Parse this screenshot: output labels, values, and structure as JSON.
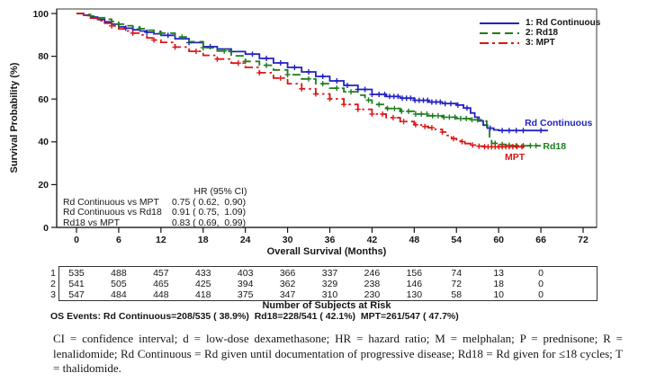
{
  "colors": {
    "rd_continuous": "#2222c4",
    "rd18": "#1e7d1e",
    "mpt": "#dd1515",
    "frame": "#595959",
    "axis": "#161616",
    "text": "#161616"
  },
  "legend": {
    "items": [
      {
        "label": "1: Rd Continuous",
        "series": "rd_continuous",
        "dash": "solid"
      },
      {
        "label": "2: Rd18",
        "series": "rd18",
        "dash": "dashed"
      },
      {
        "label": "3: MPT",
        "series": "mpt",
        "dash": "dashdot"
      }
    ]
  },
  "hr_table": {
    "header": "HR (95% CI)",
    "rows": [
      {
        "label": "Rd Continuous vs MPT",
        "value": "0.75 ( 0.62,  0.90)"
      },
      {
        "label": "Rd Continuous vs Rd18",
        "value": "0.91 ( 0.75,  1.09)"
      },
      {
        "label": "Rd18 vs MPT",
        "value": "0.83 ( 0.69,  0.99)"
      }
    ]
  },
  "risk_table": {
    "title": "Number of Subjects at Risk",
    "months": [
      0,
      6,
      12,
      18,
      24,
      30,
      36,
      42,
      48,
      54,
      60,
      66
    ],
    "rows": [
      {
        "label": "1",
        "values": [
          535,
          488,
          457,
          433,
          403,
          366,
          337,
          246,
          156,
          74,
          13,
          0
        ]
      },
      {
        "label": "2",
        "values": [
          541,
          505,
          465,
          425,
          394,
          362,
          329,
          238,
          146,
          72,
          18,
          0
        ]
      },
      {
        "label": "3",
        "values": [
          547,
          484,
          448,
          418,
          375,
          347,
          310,
          230,
          130,
          58,
          10,
          0
        ]
      }
    ]
  },
  "os_events": "OS Events: Rd Continuous=208/535 ( 38.9%)  Rd18=228/541 ( 42.1%)  MPT=261/547 ( 47.7%)",
  "footnote": "CI = confidence interval; d = low-dose dexamethasone; HR = hazard ratio; M = melphalan; P = prednisone; R = lenalidomide; Rd Continuous = Rd given until documentation of progressive disease; Rd18 = Rd given for ≤18 cycles; T = thalidomide.",
  "chart_data": {
    "type": "line",
    "subtype": "kaplan-meier-step",
    "title": "",
    "xlabel": "Overall Survival (Months)",
    "ylabel": "Survival Probability (%)",
    "xlim": [
      0,
      72
    ],
    "ylim": [
      0,
      100
    ],
    "x_ticks": [
      0,
      6,
      12,
      18,
      24,
      30,
      36,
      42,
      48,
      54,
      60,
      66,
      72
    ],
    "y_ticks": [
      0,
      20,
      40,
      60,
      80,
      100
    ],
    "grid": false,
    "legend_position": "top-right-inside",
    "series": [
      {
        "name": "Rd Continuous",
        "key": "rd_continuous",
        "dash": "solid",
        "points": [
          [
            0,
            100
          ],
          [
            1,
            99.2
          ],
          [
            2,
            98.3
          ],
          [
            3,
            97.2
          ],
          [
            4,
            96.1
          ],
          [
            5,
            95
          ],
          [
            6,
            93.8
          ],
          [
            7,
            93.1
          ],
          [
            8,
            92.4
          ],
          [
            9,
            91.8
          ],
          [
            10,
            91.2
          ],
          [
            11,
            90.5
          ],
          [
            12,
            89.8
          ],
          [
            14,
            88.2
          ],
          [
            16,
            86.4
          ],
          [
            18,
            84.5
          ],
          [
            20,
            83.4
          ],
          [
            22,
            82.2
          ],
          [
            24,
            81
          ],
          [
            26,
            79
          ],
          [
            28,
            76.9
          ],
          [
            30,
            74.8
          ],
          [
            32,
            72.7
          ],
          [
            34,
            70.6
          ],
          [
            36,
            68.5
          ],
          [
            38,
            66.4
          ],
          [
            40,
            64.5
          ],
          [
            42,
            62.2
          ],
          [
            44,
            61.2
          ],
          [
            46,
            60.4
          ],
          [
            48,
            59.4
          ],
          [
            50,
            58.6
          ],
          [
            52,
            57.9
          ],
          [
            54,
            57.2
          ],
          [
            55,
            55.8
          ],
          [
            56,
            53.5
          ],
          [
            56.6,
            51.5
          ],
          [
            57.2,
            49.8
          ],
          [
            57.8,
            47.8
          ],
          [
            58.4,
            46.4
          ],
          [
            59.3,
            45.6
          ],
          [
            60,
            45.3
          ],
          [
            67,
            45.3
          ]
        ],
        "censor_months": [
          7,
          10,
          13,
          16,
          19,
          22,
          25,
          27,
          29,
          31,
          33,
          35,
          37,
          38.5,
          40,
          41,
          42,
          43,
          43.8,
          44.5,
          45.1,
          45.7,
          46.3,
          46.9,
          47.5,
          48.1,
          48.7,
          49.3,
          49.9,
          50.5,
          51.1,
          51.7,
          52.4,
          53.2,
          54.2,
          55.5,
          58.8,
          60.5,
          61.5,
          62.5,
          63.5,
          66
        ],
        "end_label": {
          "text": "Rd Continuous",
          "month": 63.7,
          "pct": 48.8,
          "anchor": "start"
        }
      },
      {
        "name": "Rd18",
        "key": "rd18",
        "dash": "dashed",
        "points": [
          [
            0,
            100
          ],
          [
            1,
            99.5
          ],
          [
            2,
            98.8
          ],
          [
            3,
            98
          ],
          [
            4,
            97.3
          ],
          [
            5,
            96.2
          ],
          [
            6,
            95
          ],
          [
            7,
            94.3
          ],
          [
            8,
            93.6
          ],
          [
            9,
            92.9
          ],
          [
            10,
            92.2
          ],
          [
            11,
            91.5
          ],
          [
            12,
            90.8
          ],
          [
            14,
            89
          ],
          [
            16,
            86.8
          ],
          [
            18,
            84
          ],
          [
            20,
            82.5
          ],
          [
            22,
            80.2
          ],
          [
            24,
            77.6
          ],
          [
            26,
            75.8
          ],
          [
            28,
            73.6
          ],
          [
            30,
            71.4
          ],
          [
            32,
            69.4
          ],
          [
            34,
            67.2
          ],
          [
            36,
            65.1
          ],
          [
            38,
            63.4
          ],
          [
            40,
            61.8
          ],
          [
            41,
            59.5
          ],
          [
            42,
            57.5
          ],
          [
            44,
            55.6
          ],
          [
            46,
            54.3
          ],
          [
            48,
            53
          ],
          [
            50,
            52.2
          ],
          [
            52,
            51.5
          ],
          [
            54,
            50.9
          ],
          [
            56,
            50.3
          ],
          [
            58,
            49.7
          ],
          [
            58.3,
            46
          ],
          [
            58.7,
            40.5
          ],
          [
            59,
            39.3
          ],
          [
            60,
            38.8
          ],
          [
            61,
            38.4
          ],
          [
            62,
            38.2
          ],
          [
            66,
            38.2
          ]
        ],
        "censor_months": [
          6,
          9,
          12,
          15,
          18,
          21,
          24,
          27,
          30,
          33,
          35,
          37,
          39,
          41.5,
          43,
          44.2,
          45.2,
          46.2,
          47.2,
          48.2,
          49,
          49.8,
          50.6,
          51.4,
          52.2,
          53,
          53.8,
          54.6,
          55.4,
          56.2,
          57,
          59.5,
          60.5,
          61.5,
          62.5,
          63.5,
          64.5,
          65.3
        ],
        "end_label": {
          "text": "Rd18",
          "month": 66.3,
          "pct": 38,
          "anchor": "start"
        }
      },
      {
        "name": "MPT",
        "key": "mpt",
        "dash": "dashdot",
        "points": [
          [
            0,
            100
          ],
          [
            1,
            99
          ],
          [
            2,
            97.8
          ],
          [
            3,
            96.6
          ],
          [
            4,
            95.4
          ],
          [
            5,
            94.2
          ],
          [
            6,
            92.8
          ],
          [
            7,
            91.8
          ],
          [
            8,
            90.8
          ],
          [
            9,
            90
          ],
          [
            10,
            88.6
          ],
          [
            11,
            87.6
          ],
          [
            12,
            86.5
          ],
          [
            14,
            84.3
          ],
          [
            16,
            82.3
          ],
          [
            18,
            80.4
          ],
          [
            20,
            78.7
          ],
          [
            22,
            76.8
          ],
          [
            24,
            74.8
          ],
          [
            26,
            72.3
          ],
          [
            28,
            69.8
          ],
          [
            30,
            67.2
          ],
          [
            32,
            64.8
          ],
          [
            34,
            62.4
          ],
          [
            36,
            60.1
          ],
          [
            38,
            57.5
          ],
          [
            40,
            55.2
          ],
          [
            42,
            53
          ],
          [
            44,
            51.3
          ],
          [
            46,
            49.5
          ],
          [
            48,
            48
          ],
          [
            49,
            47.2
          ],
          [
            50,
            46.6
          ],
          [
            51,
            45.8
          ],
          [
            52,
            44.6
          ],
          [
            52.7,
            43
          ],
          [
            53.3,
            41.5
          ],
          [
            54,
            40.4
          ],
          [
            54.6,
            40.1
          ],
          [
            55.2,
            39.2
          ],
          [
            56,
            38.5
          ],
          [
            57,
            38
          ],
          [
            58,
            37.7
          ],
          [
            64,
            37.7
          ]
        ],
        "censor_months": [
          5,
          8,
          11,
          14,
          17,
          20,
          23,
          26,
          29,
          32,
          34,
          36,
          38,
          40,
          42,
          43.5,
          45,
          46.5,
          48.2,
          49.5,
          50.5,
          52,
          53.6,
          54.8,
          56.3,
          57.2,
          58,
          58.5,
          59,
          59.5,
          60,
          60.5,
          61,
          61.5,
          62,
          62.6,
          63.3
        ],
        "end_label": {
          "text": "MPT",
          "month": 62.3,
          "pct": 32.6,
          "anchor": "middle"
        }
      }
    ]
  }
}
